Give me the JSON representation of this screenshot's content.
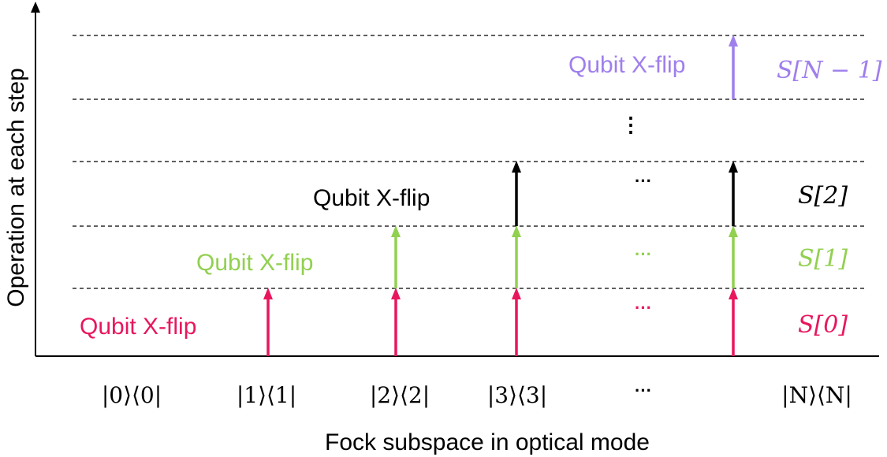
{
  "axes": {
    "x_label": "Fock subspace in optical mode",
    "y_label": "Operation at each step"
  },
  "x_ticks": [
    "|0⟩⟨0|",
    "|1⟩⟨1|",
    "|2⟩⟨2|",
    "|3⟩⟨3|",
    "···",
    "|N⟩⟨N|"
  ],
  "steps": [
    {
      "label": "S[0]",
      "flip_label": "Qubit X-flip",
      "ellipsis": "···",
      "color": "#e8175d"
    },
    {
      "label": "S[1]",
      "flip_label": "Qubit X-flip",
      "ellipsis": "···",
      "color": "#92d050"
    },
    {
      "label": "S[2]",
      "flip_label": "Qubit X-flip",
      "ellipsis": "···",
      "color": "#000000"
    },
    {
      "label": "S[N − 1]",
      "flip_label": "Qubit X-flip",
      "color": "#9f7fec"
    }
  ],
  "vertical_ellipsis": "⋮"
}
